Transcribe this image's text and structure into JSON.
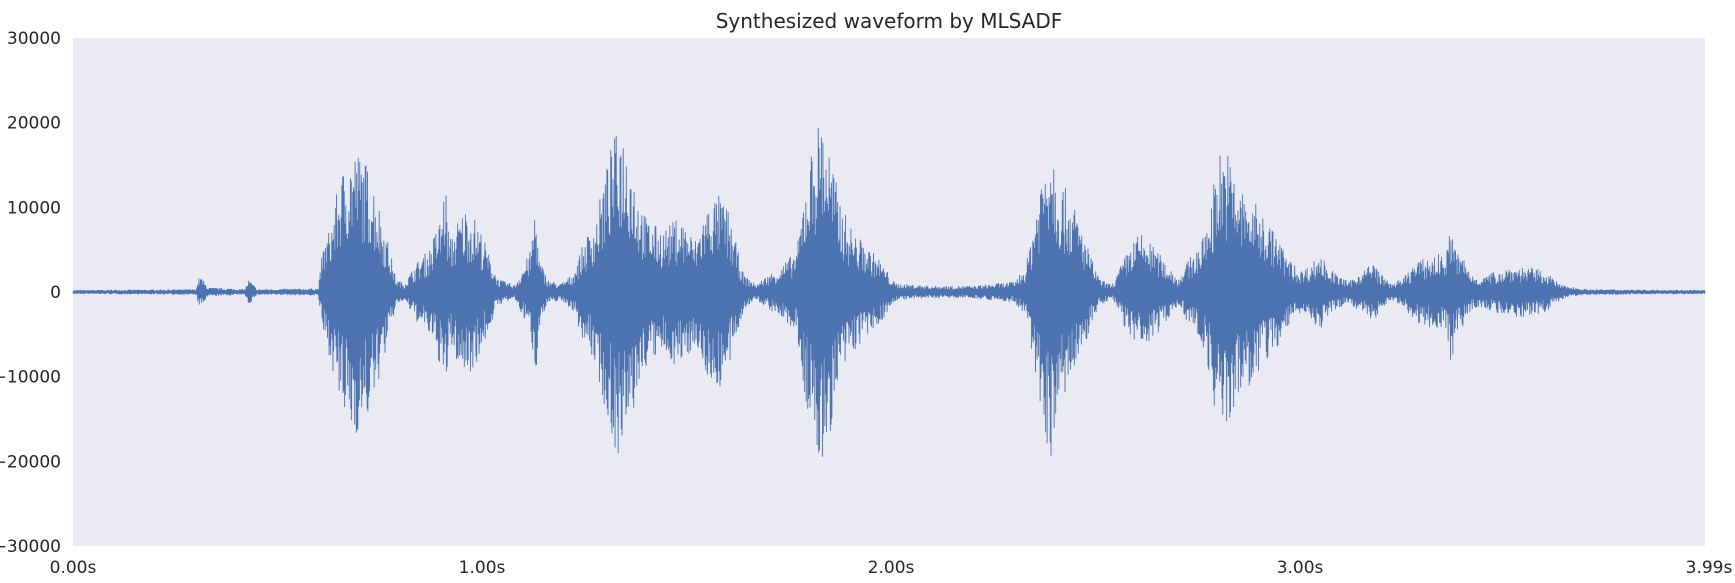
{
  "chart_data": {
    "type": "line",
    "title": "Synthesized waveform by MLSADF",
    "xlabel": "",
    "ylabel": "",
    "xlim": [
      0.0,
      3.99
    ],
    "ylim": [
      -30000,
      30000
    ],
    "grid": false,
    "background_color": "#eaeaf2",
    "series_color": "#4c72b0",
    "x_ticks": [
      {
        "value": 0.0,
        "label": "0.00s"
      },
      {
        "value": 1.0,
        "label": "1.00s"
      },
      {
        "value": 2.0,
        "label": "2.00s"
      },
      {
        "value": 3.0,
        "label": "3.00s"
      },
      {
        "value": 3.99,
        "label": "3.99s"
      }
    ],
    "y_ticks": [
      {
        "value": 30000,
        "label": "30000"
      },
      {
        "value": 20000,
        "label": "20000"
      },
      {
        "value": 10000,
        "label": "10000"
      },
      {
        "value": 0,
        "label": "0"
      },
      {
        "value": -10000,
        "label": "−10000"
      },
      {
        "value": -20000,
        "label": "−20000"
      },
      {
        "value": -30000,
        "label": "−30000"
      }
    ],
    "series": [
      {
        "description_of_envelope": "approximate peak amplitude envelope of the waveform",
        "envelope": [
          [
            0.0,
            200
          ],
          [
            0.3,
            300
          ],
          [
            0.31,
            2000
          ],
          [
            0.33,
            500
          ],
          [
            0.42,
            300
          ],
          [
            0.43,
            1500
          ],
          [
            0.45,
            300
          ],
          [
            0.6,
            400
          ],
          [
            0.61,
            5000
          ],
          [
            0.63,
            8000
          ],
          [
            0.65,
            13000
          ],
          [
            0.67,
            16000
          ],
          [
            0.69,
            17000
          ],
          [
            0.71,
            16000
          ],
          [
            0.73,
            14000
          ],
          [
            0.75,
            10000
          ],
          [
            0.77,
            6000
          ],
          [
            0.79,
            1500
          ],
          [
            0.81,
            1000
          ],
          [
            0.84,
            3500
          ],
          [
            0.87,
            5000
          ],
          [
            0.9,
            9000
          ],
          [
            0.91,
            13500
          ],
          [
            0.92,
            6000
          ],
          [
            0.94,
            8500
          ],
          [
            0.96,
            10000
          ],
          [
            0.98,
            9000
          ],
          [
            1.0,
            7000
          ],
          [
            1.02,
            4000
          ],
          [
            1.04,
            1500
          ],
          [
            1.08,
            800
          ],
          [
            1.1,
            3000
          ],
          [
            1.12,
            5000
          ],
          [
            1.13,
            11000
          ],
          [
            1.14,
            4000
          ],
          [
            1.16,
            1500
          ],
          [
            1.19,
            900
          ],
          [
            1.22,
            2000
          ],
          [
            1.25,
            6000
          ],
          [
            1.28,
            9000
          ],
          [
            1.3,
            14000
          ],
          [
            1.32,
            18000
          ],
          [
            1.34,
            20000
          ],
          [
            1.36,
            17000
          ],
          [
            1.38,
            12000
          ],
          [
            1.4,
            9000
          ],
          [
            1.42,
            8000
          ],
          [
            1.44,
            7500
          ],
          [
            1.46,
            8000
          ],
          [
            1.48,
            9000
          ],
          [
            1.5,
            8000
          ],
          [
            1.52,
            6000
          ],
          [
            1.54,
            9000
          ],
          [
            1.56,
            11000
          ],
          [
            1.58,
            11500
          ],
          [
            1.6,
            10000
          ],
          [
            1.62,
            6000
          ],
          [
            1.64,
            2000
          ],
          [
            1.67,
            900
          ],
          [
            1.7,
            2000
          ],
          [
            1.73,
            3000
          ],
          [
            1.75,
            4000
          ],
          [
            1.77,
            5000
          ],
          [
            1.79,
            13000
          ],
          [
            1.81,
            18000
          ],
          [
            1.83,
            21500
          ],
          [
            1.85,
            17000
          ],
          [
            1.87,
            12000
          ],
          [
            1.89,
            9000
          ],
          [
            1.91,
            7000
          ],
          [
            1.93,
            6000
          ],
          [
            1.95,
            5000
          ],
          [
            1.97,
            4000
          ],
          [
            1.99,
            2500
          ],
          [
            2.01,
            1000
          ],
          [
            2.1,
            700
          ],
          [
            2.2,
            700
          ],
          [
            2.3,
            1200
          ],
          [
            2.33,
            3000
          ],
          [
            2.35,
            9000
          ],
          [
            2.37,
            15000
          ],
          [
            2.39,
            20000
          ],
          [
            2.41,
            13500
          ],
          [
            2.43,
            12000
          ],
          [
            2.45,
            10000
          ],
          [
            2.47,
            7000
          ],
          [
            2.49,
            4000
          ],
          [
            2.51,
            1500
          ],
          [
            2.54,
            800
          ],
          [
            2.57,
            4000
          ],
          [
            2.59,
            6000
          ],
          [
            2.61,
            7000
          ],
          [
            2.63,
            6000
          ],
          [
            2.65,
            5000
          ],
          [
            2.67,
            3500
          ],
          [
            2.69,
            2500
          ],
          [
            2.7,
            1500
          ],
          [
            2.73,
            4000
          ],
          [
            2.76,
            6000
          ],
          [
            2.78,
            10000
          ],
          [
            2.8,
            17000
          ],
          [
            2.82,
            17000
          ],
          [
            2.84,
            14000
          ],
          [
            2.86,
            12000
          ],
          [
            2.88,
            11000
          ],
          [
            2.9,
            10000
          ],
          [
            2.92,
            8500
          ],
          [
            2.94,
            7000
          ],
          [
            2.96,
            5000
          ],
          [
            2.98,
            3500
          ],
          [
            3.0,
            2500
          ],
          [
            3.02,
            3000
          ],
          [
            3.05,
            4500
          ],
          [
            3.07,
            3000
          ],
          [
            3.09,
            2000
          ],
          [
            3.12,
            1200
          ],
          [
            3.15,
            2500
          ],
          [
            3.18,
            3500
          ],
          [
            3.2,
            2000
          ],
          [
            3.22,
            1000
          ],
          [
            3.25,
            1500
          ],
          [
            3.28,
            3500
          ],
          [
            3.31,
            4000
          ],
          [
            3.34,
            4500
          ],
          [
            3.36,
            5000
          ],
          [
            3.37,
            9000
          ],
          [
            3.38,
            5000
          ],
          [
            3.4,
            4000
          ],
          [
            3.42,
            2000
          ],
          [
            3.45,
            1800
          ],
          [
            3.48,
            2500
          ],
          [
            3.51,
            3000
          ],
          [
            3.54,
            3000
          ],
          [
            3.57,
            2800
          ],
          [
            3.6,
            2500
          ],
          [
            3.62,
            1500
          ],
          [
            3.64,
            800
          ],
          [
            3.7,
            300
          ],
          [
            3.99,
            200
          ]
        ]
      }
    ]
  }
}
